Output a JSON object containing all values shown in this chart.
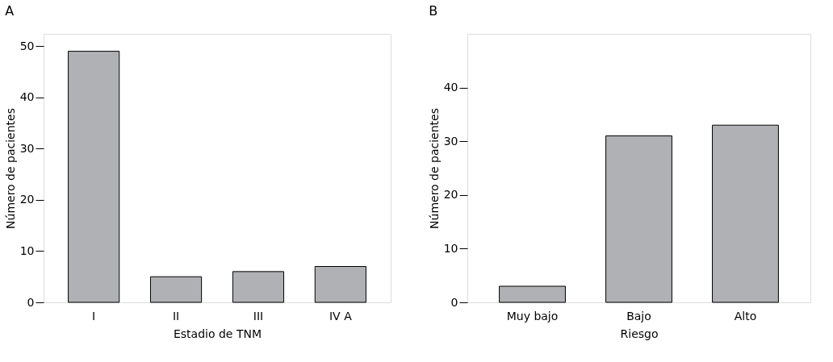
{
  "chart_data": [
    {
      "type": "bar",
      "title": "A",
      "xlabel": "Estadio de TNM",
      "ylabel": "Número de pacientes",
      "categories": [
        "I",
        "II",
        "III",
        "IV A"
      ],
      "values": [
        49,
        5,
        6,
        7
      ],
      "color": "#b0b1b4",
      "ylim": [
        0,
        52.4
      ],
      "yticks": [
        0,
        10,
        20,
        30,
        40,
        50
      ]
    },
    {
      "type": "bar",
      "title": "B",
      "xlabel": "Riesgo",
      "ylabel": "Número de pacientes",
      "categories": [
        "Muy bajo",
        "Bajo",
        "Alto"
      ],
      "values": [
        3,
        31,
        33
      ],
      "color": "#b0b1b4",
      "ylim": [
        0,
        50
      ],
      "yticks": [
        0,
        10,
        20,
        30,
        40
      ]
    }
  ]
}
